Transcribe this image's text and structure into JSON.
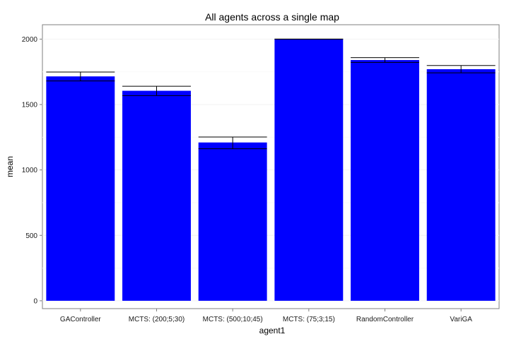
{
  "chart_data": {
    "type": "bar",
    "title": "All agents across a single map",
    "xlabel": "agent1",
    "ylabel": "mean",
    "categories": [
      "GAController",
      "MCTS: (200;5;30)",
      "MCTS: (500;10;45)",
      "MCTS: (75;3;15)",
      "RandomController",
      "VariGA"
    ],
    "values": [
      1715,
      1605,
      1210,
      2000,
      1840,
      1770
    ],
    "error_low": [
      1680,
      1568,
      1162,
      2000,
      1822,
      1742
    ],
    "error_high": [
      1748,
      1640,
      1252,
      2000,
      1858,
      1798
    ],
    "ylim": [
      -60,
      2110
    ],
    "yticks": [
      0,
      500,
      1000,
      1500,
      2000
    ],
    "grid": true,
    "bar_color": "#0000ff",
    "error_bar_color": "#000000",
    "background_color": "#ffffff",
    "gridline_color": "#f2f2f2"
  }
}
